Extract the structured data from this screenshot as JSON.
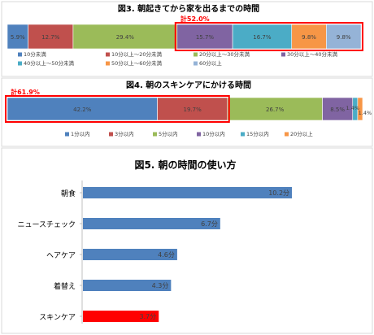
{
  "chart_data": [
    {
      "type": "bar",
      "orientation": "horizontal-stacked-100",
      "title": "図3. 朝起きてから家を出るまでの時間",
      "categories": [
        "10分未満",
        "10分以上～20分未満",
        "20分以上～30分未満",
        "30分以上～40分未満",
        "40分以上～50分未満",
        "50分以上～60分未満",
        "60分以上"
      ],
      "values": [
        5.9,
        12.7,
        29.4,
        15.7,
        16.7,
        9.8,
        9.8
      ],
      "value_labels": [
        "5.9%",
        "12.7%",
        "29.4%",
        "15.7%",
        "16.7%",
        "9.8%",
        "9.8%"
      ],
      "colors": [
        "#4f81bd",
        "#c0504d",
        "#9bbb59",
        "#8064a2",
        "#4bacc6",
        "#f79646",
        "#95b3d7"
      ],
      "highlight": {
        "from_index": 3,
        "to_index": 6,
        "label": "計52.0%"
      },
      "legend_position": "bottom"
    },
    {
      "type": "bar",
      "orientation": "horizontal-stacked-100",
      "title": "図4. 朝のスキンケアにかける時間",
      "categories": [
        "1分以内",
        "3分以内",
        "5分以内",
        "10分以内",
        "15分以内",
        "20分以上"
      ],
      "values": [
        42.2,
        19.7,
        26.7,
        8.5,
        1.4,
        1.4
      ],
      "value_labels": [
        "42.2%",
        "19.7%",
        "26.7%",
        "8.5%",
        "1.4%",
        "1.4%"
      ],
      "colors": [
        "#4f81bd",
        "#c0504d",
        "#9bbb59",
        "#8064a2",
        "#4bacc6",
        "#f79646"
      ],
      "highlight": {
        "from_index": 0,
        "to_index": 1,
        "label": "計61.9%"
      },
      "legend_position": "bottom"
    },
    {
      "type": "bar",
      "orientation": "horizontal",
      "title": "図5. 朝の時間の使い方",
      "categories": [
        "朝食",
        "ニュースチェック",
        "ヘアケア",
        "着替え",
        "スキンケア"
      ],
      "values": [
        10.2,
        6.7,
        4.6,
        4.3,
        3.7
      ],
      "value_labels": [
        "10.2分",
        "6.7分",
        "4.6分",
        "4.3分",
        "3.7分"
      ],
      "colors": [
        "#4f81bd",
        "#4f81bd",
        "#4f81bd",
        "#4f81bd",
        "#ff0000"
      ],
      "xlim": [
        0,
        18
      ]
    }
  ]
}
